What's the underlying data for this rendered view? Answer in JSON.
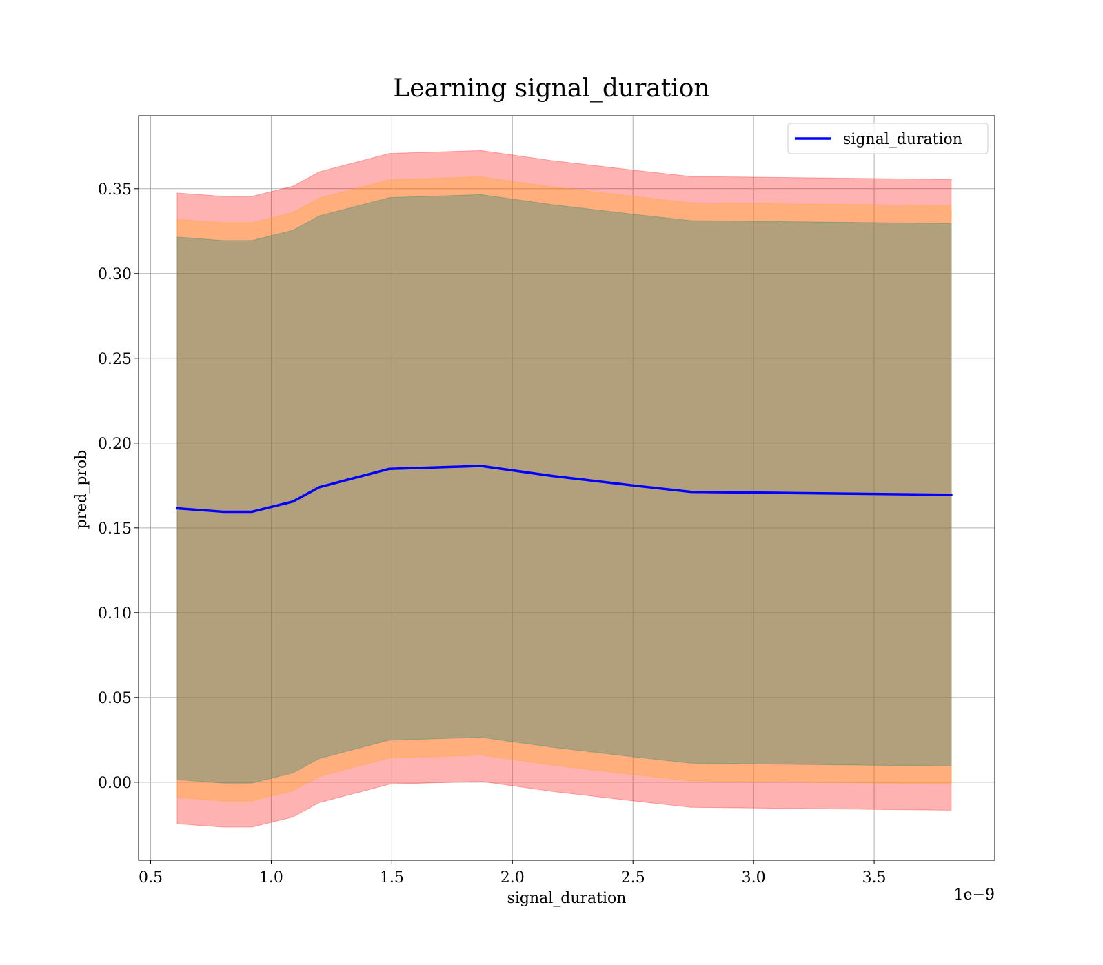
{
  "chart_data": {
    "type": "line",
    "title": "Learning signal_duration",
    "xlabel": "signal_duration",
    "ylabel": "pred_prob",
    "x_offset_label": "1e−9",
    "xlim": [
      0.45,
      4.0
    ],
    "ylim": [
      -0.046,
      0.393
    ],
    "x_ticks": [
      0.5,
      1.0,
      1.5,
      2.0,
      2.5,
      3.0,
      3.5
    ],
    "x_tick_labels": [
      "0.5",
      "1.0",
      "1.5",
      "2.0",
      "2.5",
      "3.0",
      "3.5"
    ],
    "y_ticks": [
      0.0,
      0.05,
      0.1,
      0.15,
      0.2,
      0.25,
      0.3,
      0.35
    ],
    "y_tick_labels": [
      "0.00",
      "0.05",
      "0.10",
      "0.15",
      "0.20",
      "0.25",
      "0.30",
      "0.35"
    ],
    "grid": true,
    "legend_position": "top-right",
    "x": [
      0.61,
      0.8,
      0.92,
      1.09,
      1.2,
      1.49,
      1.87,
      2.17,
      2.5,
      2.74,
      3.0,
      3.82
    ],
    "series": [
      {
        "name": "signal_duration",
        "color": "#0000ff",
        "values": [
          0.1615,
          0.1595,
          0.1595,
          0.1655,
          0.174,
          0.1848,
          0.1865,
          0.1805,
          0.175,
          0.1712,
          0.1708,
          0.1695
        ]
      }
    ],
    "bands": [
      {
        "color": "#ff0000",
        "opacity": 0.3,
        "upper": [
          0.3475,
          0.3455,
          0.3455,
          0.3515,
          0.36,
          0.3708,
          0.3725,
          0.3665,
          0.361,
          0.3572,
          0.3568,
          0.3555
        ],
        "lower": [
          -0.0245,
          -0.0265,
          -0.0265,
          -0.0205,
          -0.012,
          -0.0012,
          0.0005,
          -0.0055,
          -0.011,
          -0.0148,
          -0.0152,
          -0.0165
        ]
      },
      {
        "color": "#ffa500",
        "opacity": 0.3,
        "upper": [
          0.332,
          0.33,
          0.33,
          0.336,
          0.3445,
          0.3553,
          0.357,
          0.351,
          0.3455,
          0.3417,
          0.3413,
          0.34
        ],
        "lower": [
          -0.009,
          -0.011,
          -0.011,
          -0.005,
          0.0035,
          0.0143,
          0.016,
          0.01,
          0.0045,
          0.0007,
          0.0003,
          -0.001
        ]
      },
      {
        "color": "#008080",
        "opacity": 0.3,
        "upper": [
          0.3215,
          0.3195,
          0.3195,
          0.3255,
          0.334,
          0.3448,
          0.3465,
          0.3405,
          0.335,
          0.3312,
          0.3308,
          0.3295
        ],
        "lower": [
          0.0015,
          -0.0005,
          -0.0005,
          0.0055,
          0.014,
          0.0248,
          0.0265,
          0.0205,
          0.015,
          0.0112,
          0.0108,
          0.0095
        ]
      }
    ]
  }
}
